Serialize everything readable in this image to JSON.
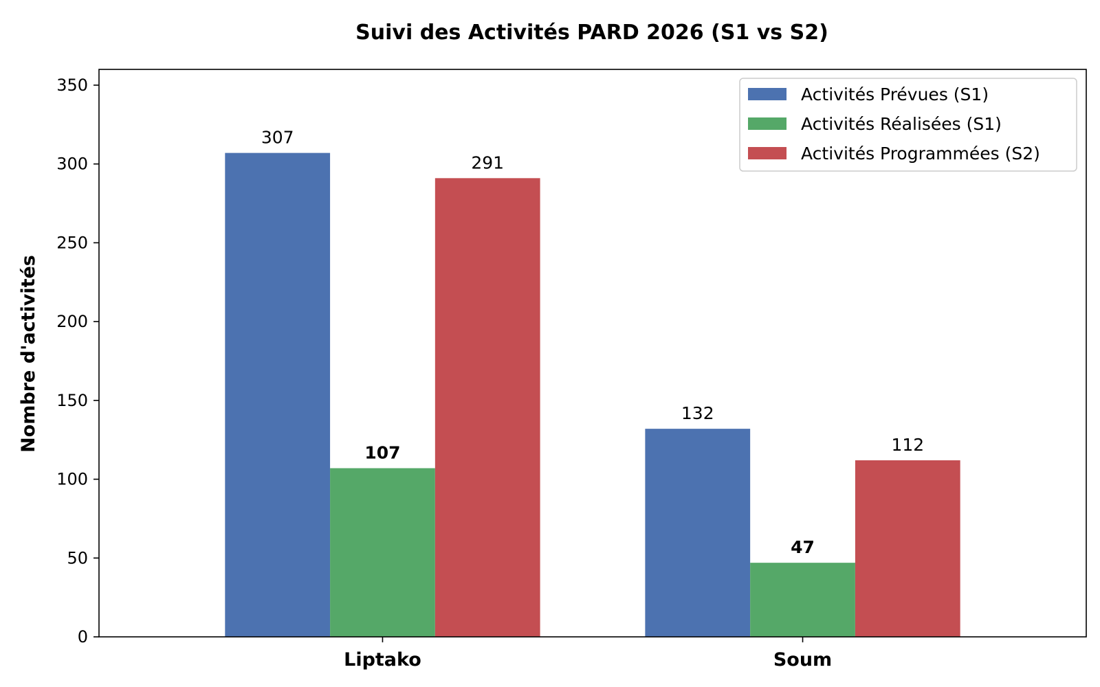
{
  "chart_data": {
    "type": "bar",
    "title": "Suivi des Activités PARD 2026 (S1 vs S2)",
    "xlabel": "",
    "ylabel": "Nombre d'activités",
    "categories": [
      "Liptako",
      "Soum"
    ],
    "ylim": [
      0,
      360
    ],
    "yticks": [
      0,
      50,
      100,
      150,
      200,
      250,
      300,
      350
    ],
    "grid": false,
    "legend_position": "top-right",
    "series": [
      {
        "name": "Activités Prévues (S1)",
        "values": [
          307,
          132
        ],
        "color": "#4c72b0",
        "label_bold": false
      },
      {
        "name": "Activités Réalisées (S1)",
        "values": [
          107,
          47
        ],
        "color": "#55a868",
        "label_bold": true
      },
      {
        "name": "Activités Programmées (S2)",
        "values": [
          291,
          112
        ],
        "color": "#c44e52",
        "label_bold": false
      }
    ]
  }
}
